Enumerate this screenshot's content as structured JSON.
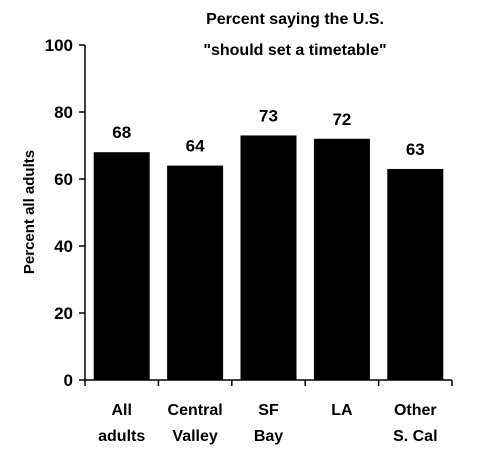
{
  "chart_data": {
    "type": "bar",
    "title_lines": [
      "Percent saying the U.S.",
      "\"should set a timetable\""
    ],
    "ylabel": "Percent all adults",
    "xlabel": "",
    "categories": [
      {
        "lines": [
          "All",
          "adults"
        ]
      },
      {
        "lines": [
          "Central",
          "Valley"
        ]
      },
      {
        "lines": [
          "SF",
          "Bay"
        ]
      },
      {
        "lines": [
          "LA"
        ]
      },
      {
        "lines": [
          "Other",
          "S. Cal"
        ]
      }
    ],
    "values": [
      68,
      64,
      73,
      72,
      63
    ],
    "data_labels": [
      "68",
      "64",
      "73",
      "72",
      "63"
    ],
    "ylim": [
      0,
      100
    ],
    "yticks": [
      0,
      20,
      40,
      60,
      80,
      100
    ],
    "ytick_labels": [
      "0",
      "20",
      "40",
      "60",
      "80",
      "100"
    ],
    "bar_color": "#000000",
    "grid": false,
    "legend": "none"
  }
}
